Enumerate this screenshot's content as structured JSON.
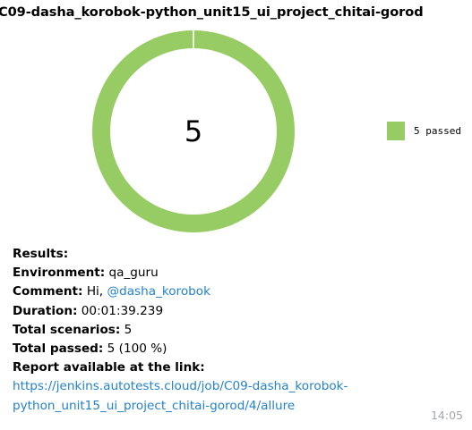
{
  "header": {
    "title": "C09-dasha_korobok-python_unit15_ui_project_chitai-gorod"
  },
  "chart_data": {
    "type": "pie",
    "center_value": "5",
    "slices": [
      {
        "name": "5 passed",
        "value": 5,
        "color": "#97cc64"
      }
    ],
    "legend": [
      "5 passed"
    ],
    "legend_placement": "right"
  },
  "report": {
    "results_label": "Results:",
    "environment_label": "Environment:",
    "environment_value": "qa_guru",
    "comment_label": "Comment:",
    "comment_prefix": "Hi,",
    "comment_mention": "@dasha_korobok",
    "duration_label": "Duration:",
    "duration_value": "00:01:39.239",
    "total_scenarios_label": "Total scenarios:",
    "total_scenarios_value": "5",
    "total_passed_label": "Total passed:",
    "total_passed_value": "5 (100 %)",
    "report_link_label": "Report available at the link:",
    "report_url": "https://jenkins.autotests.cloud/job/C09-dasha_korobok-python_unit15_ui_project_chitai-gorod/4/allure"
  },
  "message": {
    "time": "14:05"
  }
}
